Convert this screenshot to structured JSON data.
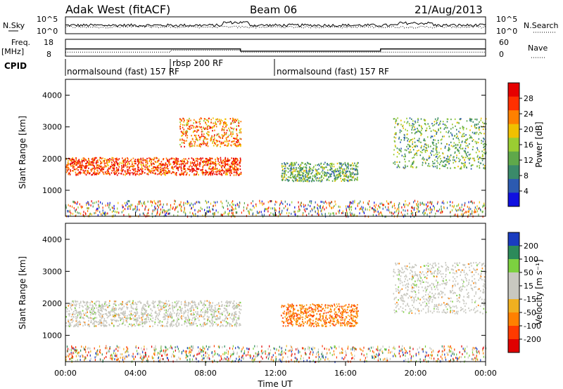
{
  "header": {
    "station": "Adak West (fitACF)",
    "beam": "Beam 06",
    "date": "21/Aug/2013"
  },
  "strips": {
    "nsky_label": "N.Sky",
    "nsky_ticks": [
      "10^5",
      "10^0"
    ],
    "nsearch_label": "N.Search",
    "nsearch_ticks": [
      "10^5",
      "10^0"
    ],
    "freq_label": "Freq.",
    "freq_unit": "[MHz]",
    "freq_ticks": [
      "18",
      "8"
    ],
    "nave_label": "Nave",
    "nave_ticks": [
      "60",
      "0"
    ],
    "cpid_label": "CPID",
    "cpid_segments": [
      {
        "label": "normalsound (fast) 157 RF",
        "start_h": 0,
        "end_h": 6
      },
      {
        "label": "rbsp 200 RF",
        "start_h": 6,
        "end_h": 12
      },
      {
        "label": "normalsound (fast) 157 RF",
        "start_h": 12,
        "end_h": 24
      }
    ]
  },
  "chart_data": [
    {
      "type": "heatmap",
      "title": "Power",
      "ylabel": "Slant Range [km]",
      "xlabel": "Time UT",
      "ylim": [
        180,
        4500
      ],
      "xlim": [
        0,
        24
      ],
      "y_ticks": [
        1000,
        2000,
        3000,
        4000
      ],
      "colorbar": {
        "label": "Power [dB]",
        "ticks": [
          "28",
          "24",
          "20",
          "16",
          "12",
          "8",
          "4"
        ],
        "range": [
          0,
          30
        ],
        "colors": [
          "#1010e0",
          "#2c5ab0",
          "#3a8a6a",
          "#5fa84a",
          "#9acd32",
          "#f0c000",
          "#ff8000",
          "#ff3000",
          "#e60000"
        ]
      },
      "features": [
        {
          "name": "band-main",
          "t_start": 0,
          "t_end": 10,
          "range_km": [
            1500,
            2050
          ],
          "level_db": 26
        },
        {
          "name": "arc-0700-1000",
          "t_start": 6.5,
          "t_end": 10,
          "range_km": [
            2400,
            3300
          ],
          "level_db": 22
        },
        {
          "name": "patch-1230-1600",
          "t_start": 12.3,
          "t_end": 16.7,
          "range_km": [
            1300,
            1900
          ],
          "level_db": 12
        },
        {
          "name": "band-1900-2400",
          "t_start": 18.7,
          "t_end": 24,
          "range_km": [
            1700,
            3300
          ],
          "level_db": 12
        }
      ]
    },
    {
      "type": "heatmap",
      "title": "Velocity",
      "ylabel": "Slant Range [km]",
      "xlabel": "Time UT",
      "ylim": [
        180,
        4500
      ],
      "xlim": [
        0,
        24
      ],
      "y_ticks": [
        1000,
        2000,
        3000,
        4000
      ],
      "colorbar": {
        "label": "Velocity [m s⁻¹]",
        "ticks": [
          "200",
          "100",
          "50",
          "15",
          "-15",
          "-50",
          "-100",
          "-200"
        ],
        "range": [
          -250,
          250
        ],
        "colors": [
          "#e00000",
          "#ff3a00",
          "#ff8000",
          "#f0b020",
          "#c8c8c0",
          "#c8c8c0",
          "#7cd040",
          "#2c8a5a",
          "#1a3cc0"
        ]
      },
      "features": [
        {
          "name": "band-main",
          "t_start": 0,
          "t_end": 10,
          "range_km": [
            1300,
            2100
          ],
          "velocity": 0
        },
        {
          "name": "patch-1230-1600",
          "t_start": 12.3,
          "t_end": 16.7,
          "range_km": [
            1300,
            2000
          ],
          "velocity": -80
        },
        {
          "name": "band-1900-2400",
          "t_start": 18.7,
          "t_end": 24,
          "range_km": [
            1700,
            3300
          ],
          "velocity": 0
        }
      ]
    }
  ],
  "time_axis": {
    "ticks": [
      "00:00",
      "04:00",
      "08:00",
      "12:00",
      "16:00",
      "20:00",
      "00:00"
    ],
    "label": "Time UT"
  }
}
